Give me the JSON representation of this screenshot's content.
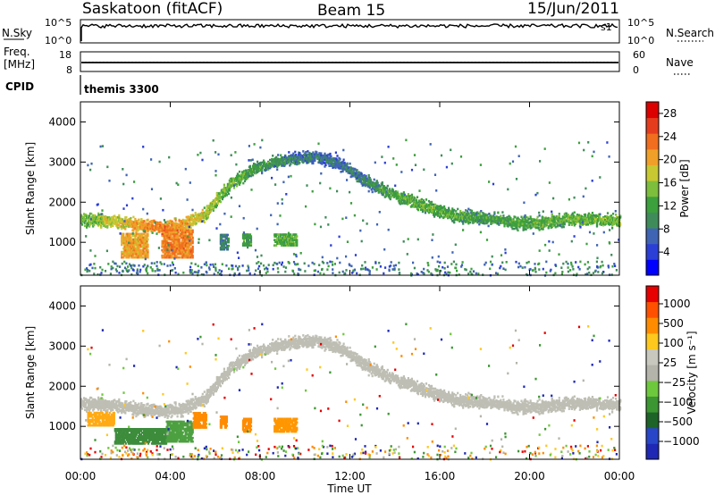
{
  "header": {
    "station": "Saskatoon (fitACF)",
    "beam": "Beam 15",
    "date": "15/Jun/2011"
  },
  "nsky_panel": {
    "left_label": "N.Sky",
    "right_label": "N.Search",
    "left_ticks": [
      "10^5",
      "10^0"
    ],
    "right_ticks": [
      "10^5",
      "10^0"
    ],
    "corner": "s1"
  },
  "freq_panel": {
    "left_label_1": "Freq.",
    "left_label_2": "[MHz]",
    "right_label": "Nave",
    "left_ticks": [
      "18",
      "8"
    ],
    "right_ticks": [
      "60",
      "0"
    ],
    "freq_ylim": [
      8,
      18
    ],
    "freq_value": 12.5,
    "nave_ylim": [
      0,
      60
    ],
    "nave_value": 28
  },
  "cpid_panel": {
    "label": "CPID",
    "program": "themis 3300"
  },
  "chart_data": [
    {
      "type": "heatmap",
      "name": "power",
      "ylabel": "Slant Range [km]",
      "xlabel": "Time UT",
      "ylim": [
        180,
        4500
      ],
      "xlim_hours": [
        0,
        24
      ],
      "y_ticks": [
        1000,
        2000,
        3000,
        4000
      ],
      "colorbar": {
        "label": "Power [dB]",
        "ticks": [
          "4",
          "8",
          "12",
          "16",
          "20",
          "24",
          "28"
        ],
        "range": [
          0,
          30
        ],
        "colors": [
          "#0000ff",
          "#2b3fd6",
          "#3f64b4",
          "#3f8c5a",
          "#3ca03c",
          "#7dbe3c",
          "#c8c832",
          "#f0a028",
          "#f06e1e",
          "#e63c1e",
          "#dc0000"
        ]
      },
      "ridges": [
        {
          "h": 0.0,
          "r": 1600,
          "p": 15
        },
        {
          "h": 1.5,
          "r": 1550,
          "p": 19
        },
        {
          "h": 2.5,
          "r": 1450,
          "p": 22
        },
        {
          "h": 3.5,
          "r": 1400,
          "p": 24
        },
        {
          "h": 4.5,
          "r": 1450,
          "p": 22
        },
        {
          "h": 5.5,
          "r": 1700,
          "p": 18
        },
        {
          "h": 6.5,
          "r": 2400,
          "p": 15
        },
        {
          "h": 7.5,
          "r": 2800,
          "p": 13
        },
        {
          "h": 8.5,
          "r": 3000,
          "p": 11
        },
        {
          "h": 9.5,
          "r": 3100,
          "p": 9
        },
        {
          "h": 10.5,
          "r": 3150,
          "p": 8
        },
        {
          "h": 11.5,
          "r": 3000,
          "p": 8
        },
        {
          "h": 12.5,
          "r": 2600,
          "p": 9
        },
        {
          "h": 13.5,
          "r": 2300,
          "p": 12
        },
        {
          "h": 14.5,
          "r": 2100,
          "p": 14
        },
        {
          "h": 15.5,
          "r": 1900,
          "p": 14
        },
        {
          "h": 16.5,
          "r": 1700,
          "p": 13
        },
        {
          "h": 17.5,
          "r": 1650,
          "p": 12
        },
        {
          "h": 18.5,
          "r": 1600,
          "p": 12
        },
        {
          "h": 19.5,
          "r": 1500,
          "p": 13
        },
        {
          "h": 20.5,
          "r": 1500,
          "p": 14
        },
        {
          "h": 21.5,
          "r": 1600,
          "p": 14
        },
        {
          "h": 22.5,
          "r": 1600,
          "p": 15
        },
        {
          "h": 24.0,
          "r": 1550,
          "p": 15
        }
      ],
      "patches": [
        {
          "h0": 1.8,
          "h1": 3.0,
          "r0": 650,
          "r1": 1250,
          "p": 21
        },
        {
          "h0": 3.6,
          "h1": 5.0,
          "r0": 650,
          "r1": 1350,
          "p": 23
        },
        {
          "h0": 6.2,
          "h1": 6.6,
          "r0": 850,
          "r1": 1250,
          "p": 8
        },
        {
          "h0": 7.2,
          "h1": 7.6,
          "r0": 950,
          "r1": 1250,
          "p": 11
        },
        {
          "h0": 8.6,
          "h1": 9.6,
          "r0": 950,
          "r1": 1250,
          "p": 13
        }
      ]
    },
    {
      "type": "heatmap",
      "name": "velocity",
      "ylabel": "Slant Range [km]",
      "xlabel": "Time UT",
      "ylim": [
        180,
        4500
      ],
      "xlim_hours": [
        0,
        24
      ],
      "y_ticks": [
        1000,
        2000,
        3000,
        4000
      ],
      "colorbar": {
        "label": "Velocity [m s⁻¹]",
        "ticks": [
          "1000",
          "500",
          "100",
          "25",
          "−25",
          "−100",
          "−500",
          "−1000"
        ],
        "colors": [
          "#1e28b4",
          "#2846c8",
          "#1e6428",
          "#3c9632",
          "#6ec83c",
          "#b4b4aa",
          "#c8c8be",
          "#ffc81e",
          "#ff8c00",
          "#ff5000",
          "#e60000"
        ]
      },
      "ground_scatter_color": "#bebeb4",
      "patches": [
        {
          "h0": 0.3,
          "h1": 1.5,
          "r0": 1050,
          "r1": 1400,
          "c": "#ffaa14"
        },
        {
          "h0": 1.5,
          "h1": 3.8,
          "r0": 600,
          "r1": 1000,
          "c": "#3c8c3c"
        },
        {
          "h0": 3.8,
          "h1": 5.0,
          "r0": 650,
          "r1": 1150,
          "c": "#4ca040"
        },
        {
          "h0": 5.0,
          "h1": 5.6,
          "r0": 1000,
          "r1": 1400,
          "c": "#ff8c00"
        },
        {
          "h0": 6.2,
          "h1": 6.5,
          "r0": 1000,
          "r1": 1300,
          "c": "#ff8c00"
        },
        {
          "h0": 7.2,
          "h1": 7.6,
          "r0": 900,
          "r1": 1250,
          "c": "#ff8c00"
        },
        {
          "h0": 8.6,
          "h1": 9.6,
          "r0": 900,
          "r1": 1250,
          "c": "#ff9600"
        }
      ]
    }
  ],
  "x_axis": {
    "tick_labels": [
      "00:00",
      "04:00",
      "08:00",
      "12:00",
      "16:00",
      "20:00",
      "00:00"
    ],
    "title": "Time UT"
  }
}
